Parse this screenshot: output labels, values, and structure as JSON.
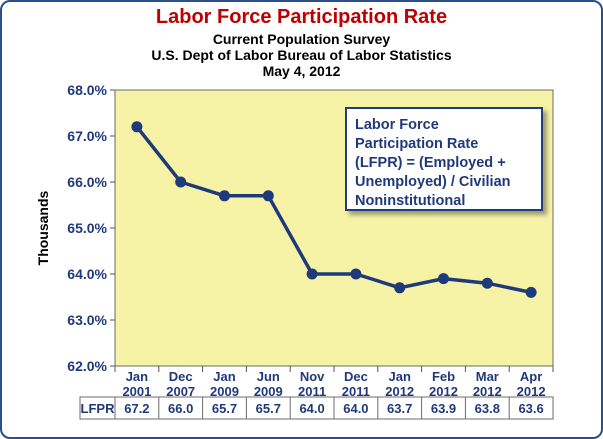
{
  "chart_data": {
    "type": "line",
    "title": "Labor Force Participation Rate",
    "subtitles": [
      "Current Population Survey",
      "U.S. Dept of Labor Bureau of Labor Statistics",
      "May 4, 2012"
    ],
    "ylabel": "Thousands",
    "ylim": [
      62.0,
      68.0
    ],
    "yticks": [
      "62.0%",
      "63.0%",
      "64.0%",
      "65.0%",
      "66.0%",
      "67.0%",
      "68.0%"
    ],
    "categories": [
      [
        "Jan",
        "2001"
      ],
      [
        "Dec",
        "2007"
      ],
      [
        "Jan",
        "2009"
      ],
      [
        "Jun",
        "2009"
      ],
      [
        "Nov",
        "2011"
      ],
      [
        "Dec",
        "2011"
      ],
      [
        "Jan",
        "2012"
      ],
      [
        "Feb",
        "2012"
      ],
      [
        "Mar",
        "2012"
      ],
      [
        "Apr",
        "2012"
      ]
    ],
    "series": [
      {
        "name": "LFPR",
        "values": [
          67.2,
          66.0,
          65.7,
          65.7,
          64.0,
          64.0,
          63.7,
          63.9,
          63.8,
          63.6
        ],
        "labels": [
          "67.2",
          "66.0",
          "65.7",
          "65.7",
          "64.0",
          "64.0",
          "63.7",
          "63.9",
          "63.8",
          "63.6"
        ]
      }
    ],
    "annotation": [
      "Labor Force",
      "Participation Rate",
      "(LFPR) = (Employed +",
      "Unemployed) / Civilian",
      "Noninstitutional"
    ],
    "colors": {
      "plot_bg": "#f6f2a6",
      "line": "#1f3a7a",
      "title": "#c00000",
      "border": "#2b4f86"
    },
    "grid": false
  }
}
